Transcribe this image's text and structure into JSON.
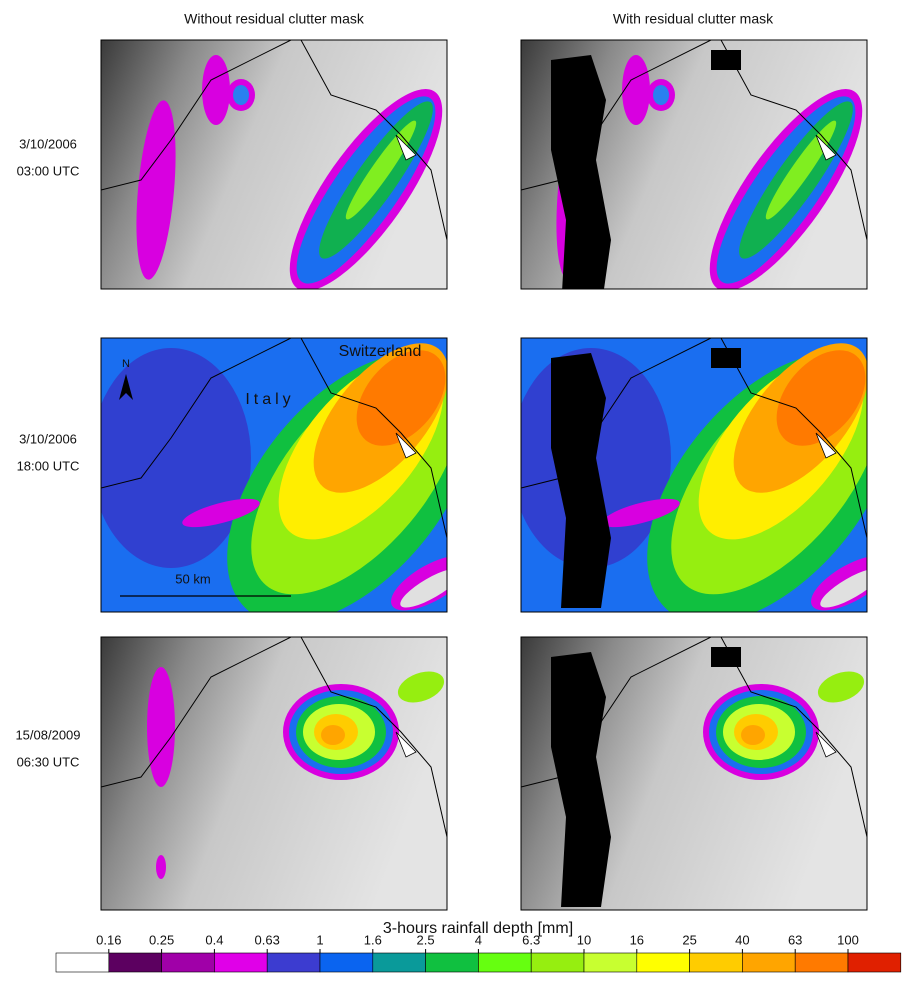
{
  "column_titles": [
    "Without residual clutter mask",
    "With residual clutter mask"
  ],
  "rows": [
    {
      "date": "3/10/2006",
      "time": "03:00 UTC"
    },
    {
      "date": "3/10/2006",
      "time": "18:00 UTC"
    },
    {
      "date": "15/08/2009",
      "time": "06:30 UTC"
    }
  ],
  "annotations": {
    "country_1": "Switzerland",
    "country_2": "Italy",
    "north": "N",
    "scale": "50 km"
  },
  "colorbar": {
    "title": "3-hours rainfall depth [mm]",
    "ticks": [
      0.16,
      0.25,
      0.4,
      0.63,
      1,
      1.6,
      2.5,
      4,
      6.3,
      10,
      16,
      25,
      40,
      63,
      100
    ],
    "colors": [
      "#ffffff",
      "#5c0060",
      "#a000a8",
      "#e000e8",
      "#3c3cd0",
      "#0a64f0",
      "#0a9a9a",
      "#10c040",
      "#66ff10",
      "#96ee10",
      "#c8ff30",
      "#ffff00",
      "#ffcc00",
      "#ffa500",
      "#ff7a00",
      "#e02000"
    ]
  }
}
